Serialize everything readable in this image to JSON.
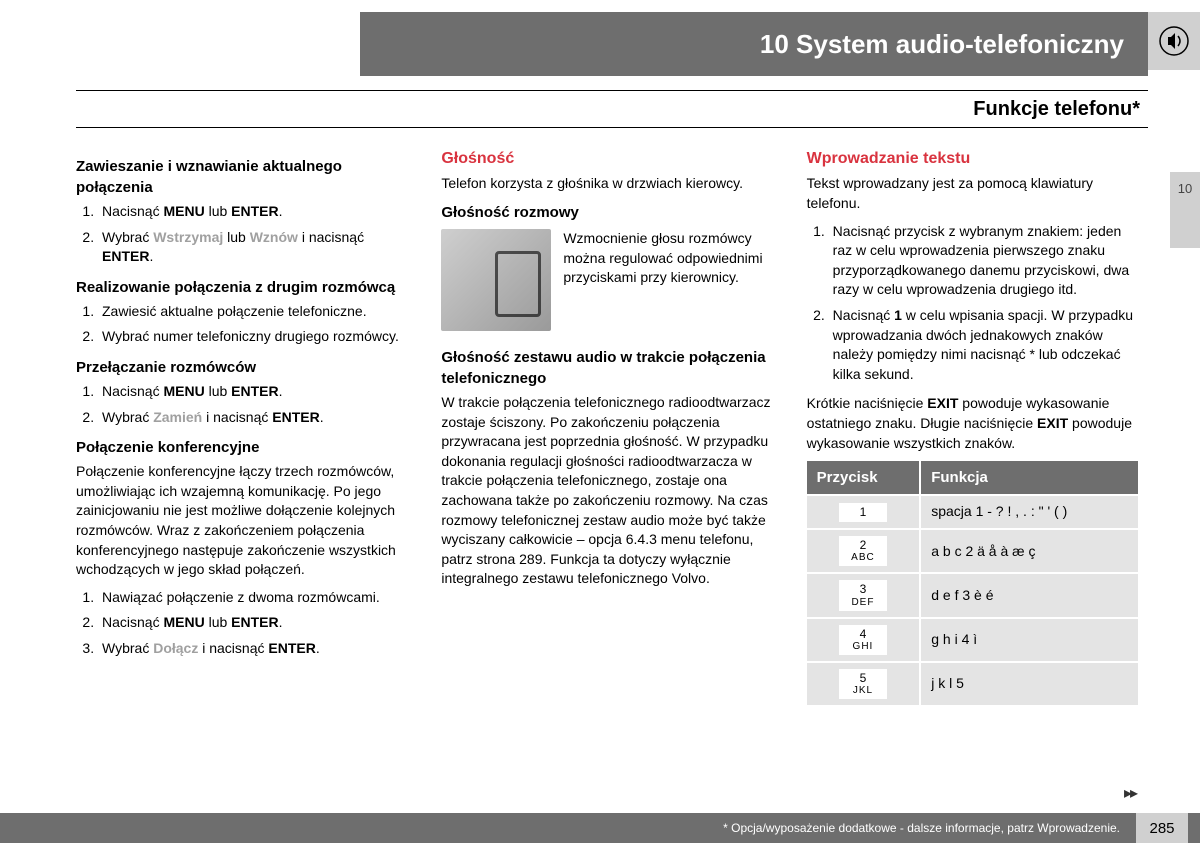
{
  "chapter": {
    "number": "10",
    "title": "System audio-telefoniczny"
  },
  "page_title": "Funkcje telefonu*",
  "side_tab": "10",
  "col1": {
    "sec1": {
      "heading": "Zawieszanie i wznawianie aktualnego połączenia",
      "steps": [
        {
          "pre": "Nacisnąć ",
          "b1": "MENU",
          "mid": " lub ",
          "b2": "ENTER",
          "post": "."
        },
        {
          "pre": "Wybrać ",
          "g1": "Wstrzymaj",
          "mid": " lub ",
          "g2": "Wznów",
          "mid2": " i nacisnąć ",
          "b1": "ENTER",
          "post": "."
        }
      ]
    },
    "sec2": {
      "heading": "Realizowanie połączenia z drugim rozmówcą",
      "steps": [
        "Zawiesić aktualne połączenie telefoniczne.",
        "Wybrać numer telefoniczny drugiego rozmówcy."
      ]
    },
    "sec3": {
      "heading": "Przełączanie rozmówców",
      "steps": [
        {
          "pre": "Nacisnąć ",
          "b1": "MENU",
          "mid": " lub ",
          "b2": "ENTER",
          "post": "."
        },
        {
          "pre": "Wybrać ",
          "g1": "Zamień",
          "mid": " i nacisnąć ",
          "b1": "ENTER",
          "post": "."
        }
      ]
    },
    "sec4": {
      "heading": "Połączenie konferencyjne",
      "para": "Połączenie konferencyjne łączy trzech rozmówców, umożliwiając ich wzajemną komunikację. Po jego zainicjowaniu nie jest możliwe dołączenie kolejnych rozmówców. Wraz z zakończeniem połączenia konferencyjnego następuje zakończenie wszystkich wchodzących w jego skład połączeń.",
      "steps": [
        "Nawiązać połączenie z dwoma rozmówcami.",
        {
          "pre": "Nacisnąć ",
          "b1": "MENU",
          "mid": " lub ",
          "b2": "ENTER",
          "post": "."
        },
        {
          "pre": "Wybrać ",
          "g1": "Dołącz",
          "mid": " i nacisnąć ",
          "b1": "ENTER",
          "post": "."
        }
      ]
    }
  },
  "col2": {
    "h1": "Głośność",
    "p1": "Telefon korzysta z głośnika w drzwiach kierowcy.",
    "h2": "Głośność rozmowy",
    "img_text": "Wzmocnienie głosu rozmówcy można regulować odpowiednimi przyciskami przy kierownicy.",
    "h3": "Głośność zestawu audio w trakcie połączenia telefonicznego",
    "p3": "W trakcie połączenia telefonicznego radioodtwarzacz zostaje ściszony. Po zakończeniu połączenia przywracana jest poprzednia głośność. W przypadku dokonania regulacji głośności radioodtwarzacza w trakcie połączenia telefonicznego, zostaje ona zachowana także po zakończeniu rozmowy. Na czas rozmowy telefonicznej zestaw audio może być także wyciszany całkowicie – opcja 6.4.3 menu telefonu, patrz strona 289. Funkcja ta dotyczy wyłącznie integralnego zestawu telefonicznego Volvo."
  },
  "col3": {
    "h1": "Wprowadzanie tekstu",
    "p1": "Tekst wprowadzany jest za pomocą klawiatury telefonu.",
    "steps": [
      "Nacisnąć przycisk z wybranym znakiem: jeden raz w celu wprowadzenia pierwszego znaku przyporządkowanego danemu przyciskowi, dwa razy w celu wprowadzenia drugiego itd.",
      {
        "pre": "Nacisnąć ",
        "b1": "1",
        "post": " w celu wpisania spacji. W przypadku wprowadzania dwóch jednakowych znaków należy pomiędzy nimi nacisnąć * lub odczekać kilka sekund."
      }
    ],
    "p2_pre": "Krótkie naciśnięcie ",
    "p2_b1": "EXIT",
    "p2_mid": " powoduje wykasowanie ostatniego znaku. Długie naciśnięcie ",
    "p2_b2": "EXIT",
    "p2_post": " powoduje wykasowanie wszystkich znaków.",
    "table": {
      "head": [
        "Przycisk",
        "Funkcja"
      ],
      "rows": [
        {
          "num": "1",
          "let": "",
          "fn": "spacja 1 - ? ! , . : \" ' ( )"
        },
        {
          "num": "2",
          "let": "ABC",
          "fn": "a b c 2 ä å à æ ç"
        },
        {
          "num": "3",
          "let": "DEF",
          "fn": "d e f 3 è é"
        },
        {
          "num": "4",
          "let": "GHI",
          "fn": "g h i 4 ì"
        },
        {
          "num": "5",
          "let": "JKL",
          "fn": "j k l 5"
        }
      ]
    }
  },
  "footer": {
    "note": "* Opcja/wyposażenie dodatkowe - dalsze informacje, patrz Wprowadzenie.",
    "page": "285"
  },
  "continue_marker": "▸▸"
}
